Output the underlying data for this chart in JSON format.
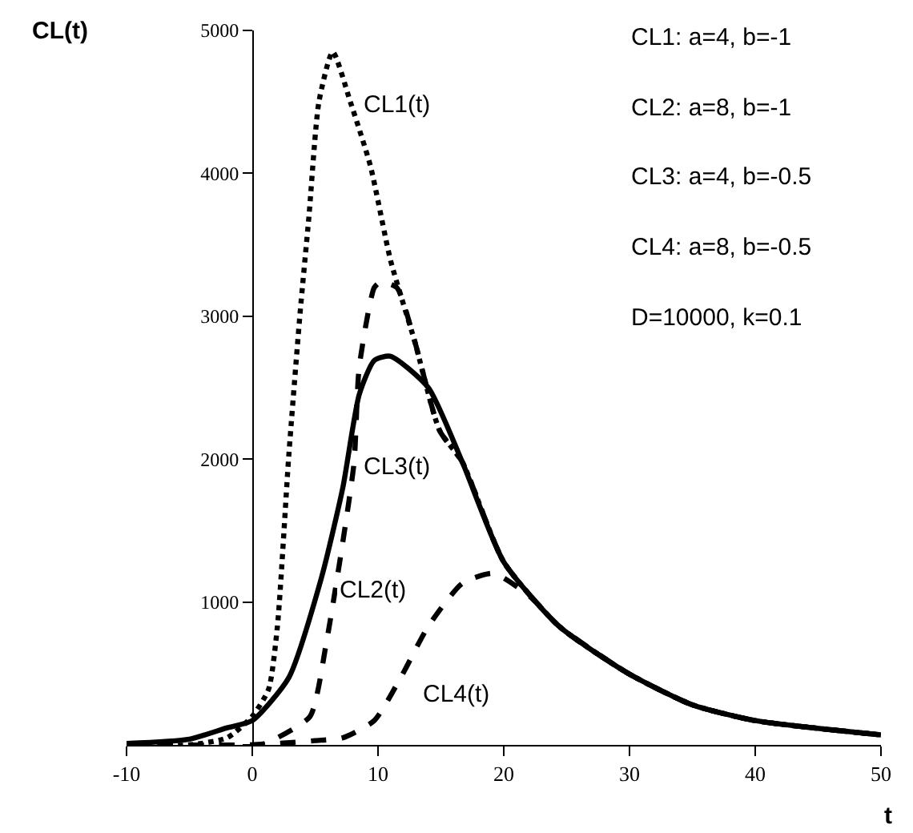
{
  "chart_data": {
    "type": "line",
    "xlabel": "t",
    "ylabel": "CL(t)",
    "xlim": [
      -10,
      50
    ],
    "xticks": [
      -10,
      0,
      10,
      20,
      30,
      40,
      50
    ],
    "ylim": [
      0,
      5000
    ],
    "yticks": [
      {
        "value": 0,
        "label": null
      },
      1000,
      2000,
      3000,
      4000,
      5000
    ],
    "marker": "none",
    "series": [
      {
        "color": "#000000",
        "line_style": "dotted",
        "x": [
          -10,
          -5,
          -2,
          0,
          1.3,
          2,
          2.9,
          3.8,
          4.5,
          5.3,
          6.4,
          7.8,
          9.4,
          11,
          12.9,
          14.9,
          16.7,
          20,
          24.4,
          29.9,
          35,
          40,
          50
        ],
        "values": [
          0,
          0,
          50,
          200,
          390,
          830,
          2020,
          3020,
          3690,
          4500,
          4850,
          4500,
          4050,
          3390,
          2830,
          2200,
          1980,
          1280,
          830,
          500,
          280,
          170,
          70
        ]
      },
      {
        "color": "#000000",
        "line_style": "dashed",
        "x": [
          -10,
          0,
          1,
          2,
          4.6,
          5.9,
          7.2,
          8.1,
          8.5,
          9.7,
          10.2,
          11.5,
          12.9,
          14.9,
          16.7,
          20,
          24.4,
          29.9,
          35,
          40,
          50
        ],
        "values": [
          0,
          0,
          10,
          50,
          200,
          720,
          1420,
          1980,
          2640,
          3200,
          3240,
          3200,
          2830,
          2200,
          1980,
          1280,
          830,
          500,
          280,
          170,
          70
        ]
      },
      {
        "color": "#000000",
        "line_style": "solid",
        "x": [
          -10,
          -5,
          -2,
          0,
          2.9,
          5.5,
          7.2,
          8.5,
          9.7,
          11,
          14,
          16.7,
          20,
          24.4,
          29.9,
          35,
          40,
          50
        ],
        "values": [
          10,
          40,
          120,
          170,
          470,
          1170,
          1800,
          2450,
          2690,
          2720,
          2500,
          1980,
          1280,
          830,
          500,
          280,
          170,
          70
        ]
      },
      {
        "color": "#000000",
        "line_style": "dashed",
        "x": [
          -10,
          0,
          2,
          5,
          7.2,
          9.7,
          11.8,
          14,
          16.7,
          19.2,
          22.2,
          24.4,
          29.9,
          35,
          40,
          50
        ],
        "values": [
          0,
          0,
          10,
          30,
          50,
          170,
          470,
          830,
          1130,
          1200,
          1030,
          830,
          500,
          280,
          170,
          70
        ]
      }
    ],
    "annotations": [
      "CL1(t)",
      "CL3(t)",
      "CL2(t)",
      "CL4(t)",
      "CL1: a=4, b=-1",
      "CL2: a=8, b=-1",
      "CL3: a=4, b=-0.5",
      "CL4: a=8, b=-0.5",
      "D=10000, k=0.1"
    ]
  }
}
